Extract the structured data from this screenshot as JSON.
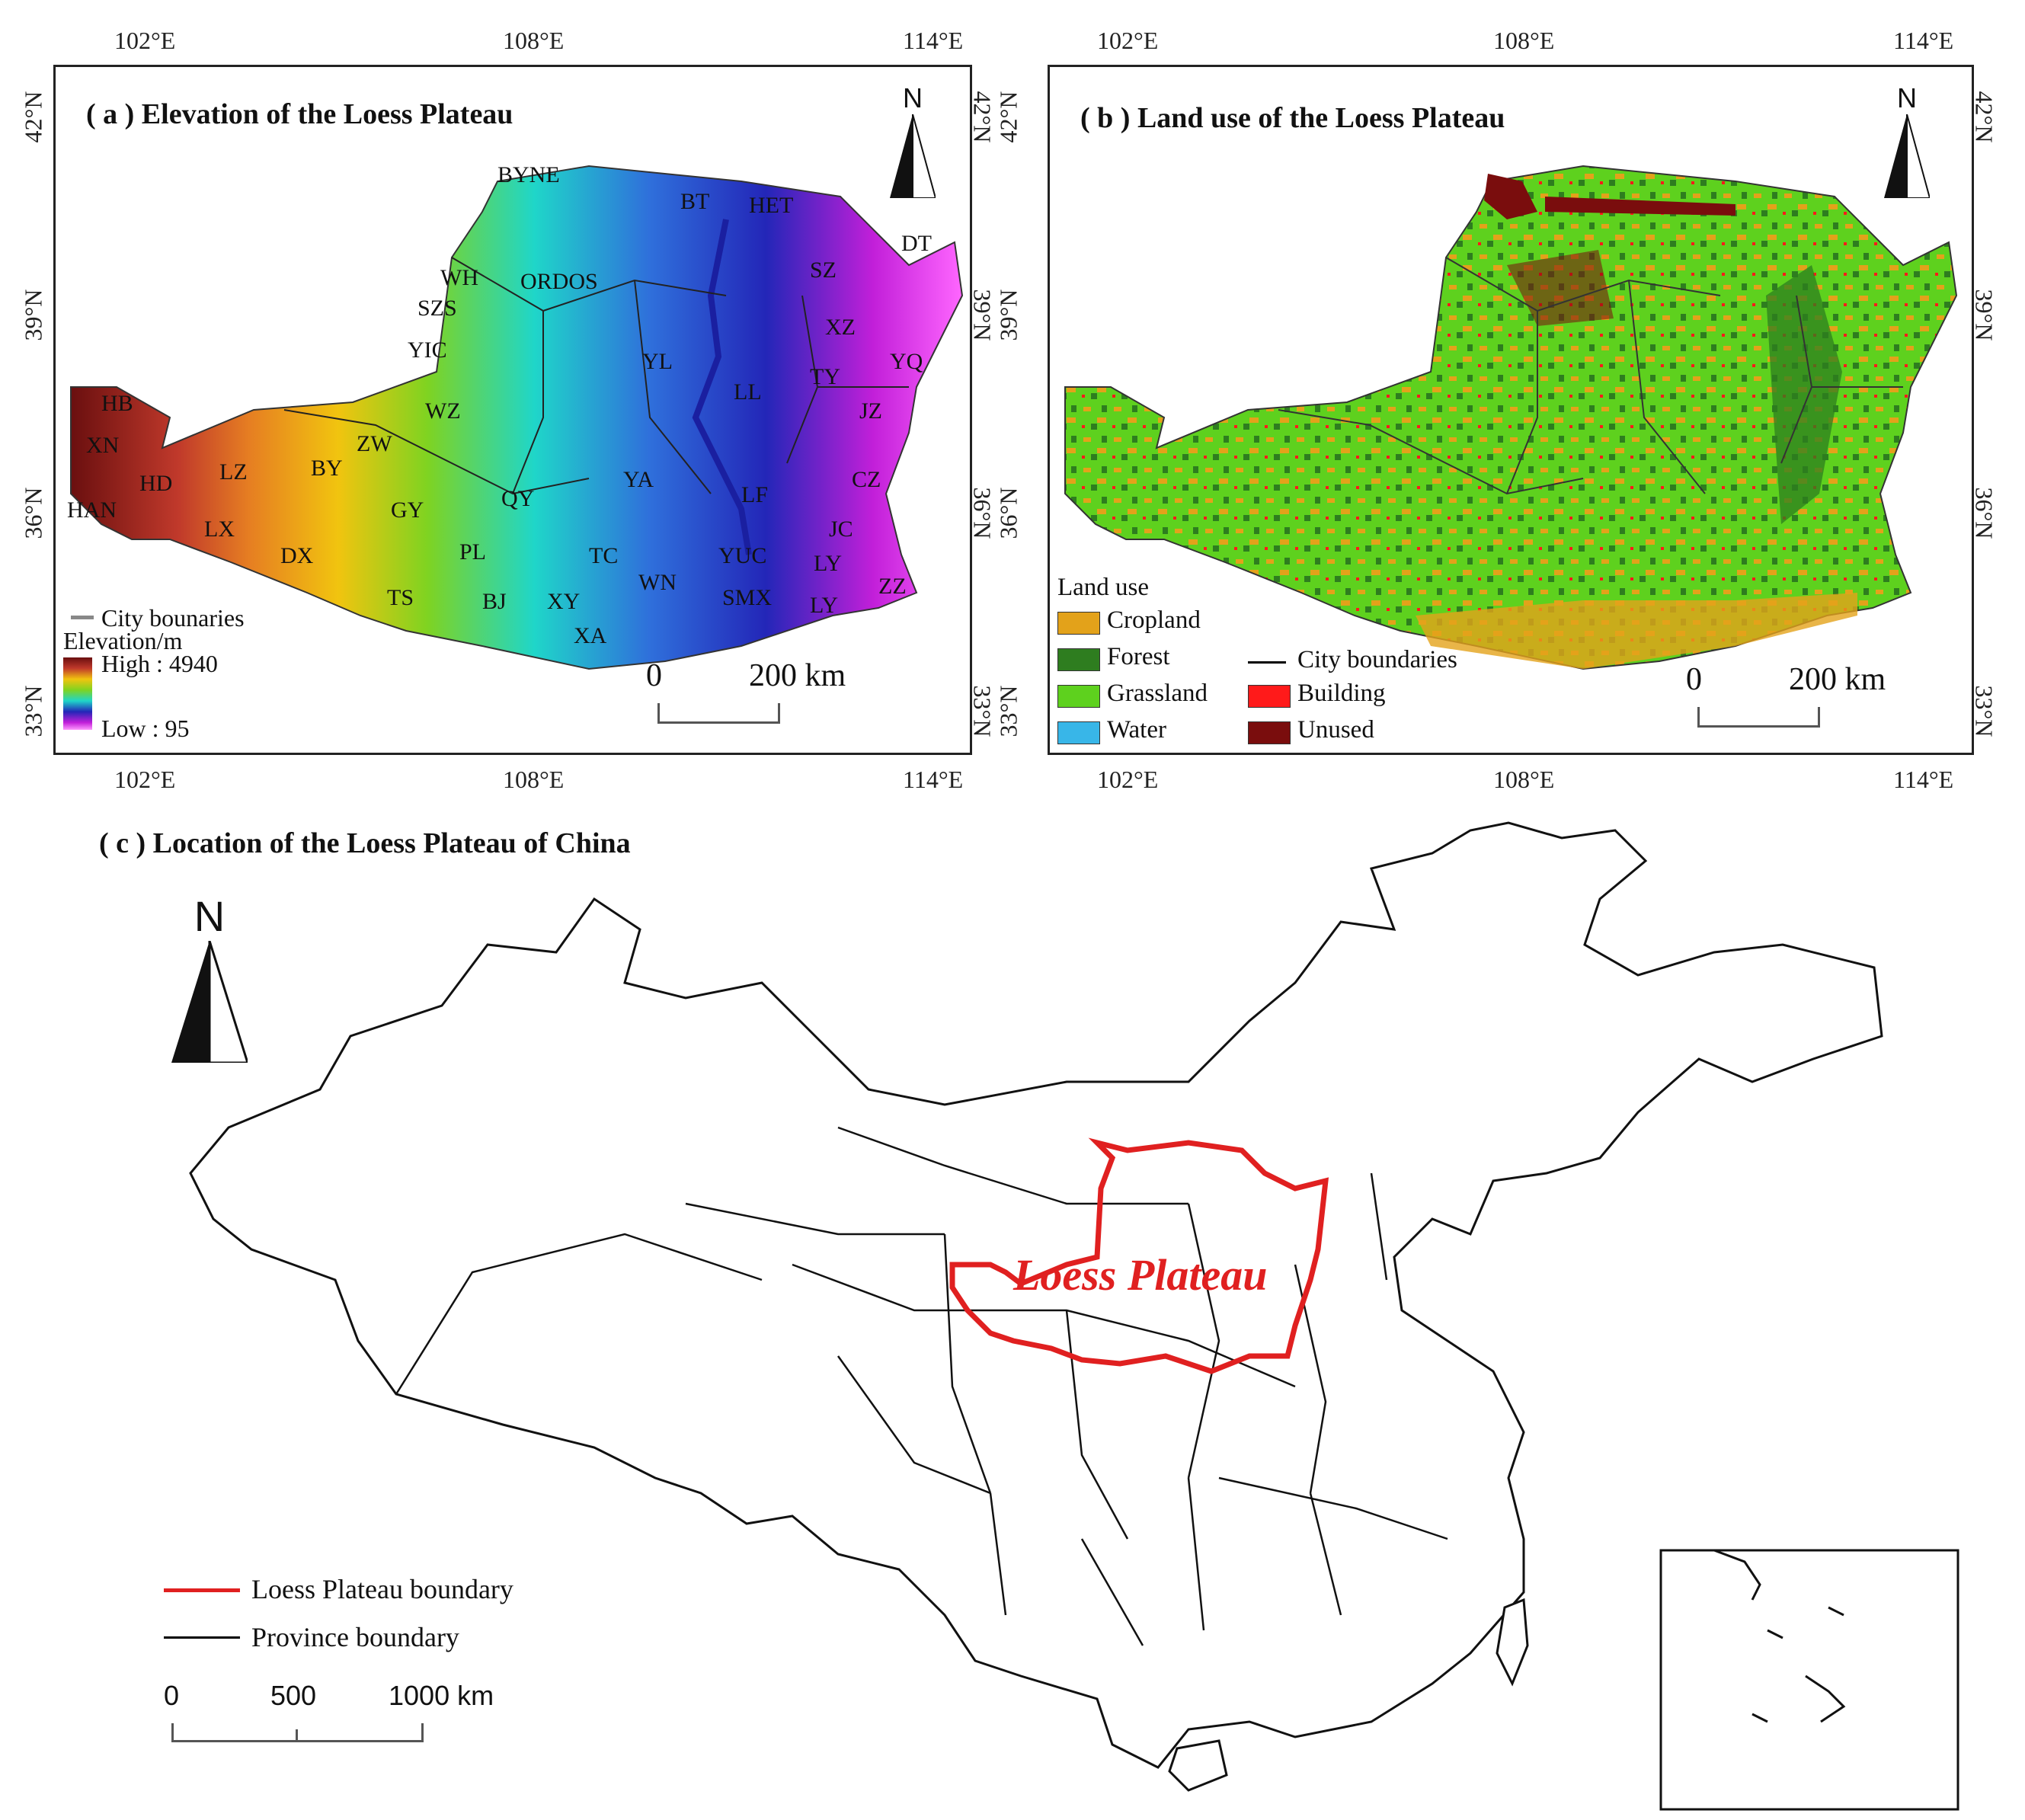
{
  "axes_top_lon": [
    "102°E",
    "108°E",
    "114°E"
  ],
  "axes_bottom_lon": [
    "102°E",
    "108°E",
    "114°E"
  ],
  "axes_lat": [
    "42°N",
    "39°N",
    "36°N",
    "33°N"
  ],
  "panel_a": {
    "title": "( a )  Elevation of the Loess Plateau",
    "north": "N",
    "city_labels": [
      "BYNE",
      "BT",
      "HET",
      "DT",
      "SZ",
      "WH",
      "ORDOS",
      "SZS",
      "XZ",
      "YIC",
      "YQ",
      "YL",
      "LL",
      "TY",
      "HB",
      "JZ",
      "WZ",
      "XN",
      "ZW",
      "LZ",
      "HD",
      "BY",
      "QY",
      "YA",
      "CZ",
      "HAN",
      "LF",
      "GY",
      "LX",
      "JC",
      "DX",
      "PL",
      "TC",
      "YUC",
      "LY",
      "TS",
      "BJ",
      "XY",
      "WN",
      "SMX",
      "ZZ",
      "XA",
      "LY"
    ],
    "legend": {
      "city_line": "City bounaries",
      "elev_title": "Elevation/m",
      "high": "High : 4940",
      "low": "Low : 95",
      "gradient_colors": [
        "#6a0f0f",
        "#c0392b",
        "#e67e22",
        "#f1c40f",
        "#7fd321",
        "#1fd6c9",
        "#2f6fdb",
        "#2326b8",
        "#c21fd9",
        "#ff66ff"
      ]
    },
    "scale": {
      "zero": "0",
      "dist": "200 km"
    }
  },
  "panel_b": {
    "title": "( b )  Land use of the Loess Plateau",
    "north": "N",
    "legend": {
      "title": "Land use",
      "items": [
        {
          "label": "Cropland",
          "color": "#e3a21a"
        },
        {
          "label": "Forest",
          "color": "#2e7d1f"
        },
        {
          "label": "Grassland",
          "color": "#5ed11e"
        },
        {
          "label": "Water",
          "color": "#38b6e8"
        }
      ],
      "items2": [
        {
          "label": "City boundaries",
          "color": "#000000"
        },
        {
          "label": "Building",
          "color": "#ff1a1a"
        },
        {
          "label": "Unused",
          "color": "#7a0d0d"
        }
      ]
    },
    "scale": {
      "zero": "0",
      "dist": "200 km"
    }
  },
  "panel_c": {
    "title": "( c )  Location of the Loess Plateau of China",
    "north": "N",
    "region_label": "Loess Plateau",
    "legend": [
      {
        "label": "Loess Plateau boundary",
        "color": "#e02020"
      },
      {
        "label": "Province boundary",
        "color": "#000000"
      }
    ],
    "scale": {
      "ticks": [
        "0",
        "500",
        "1000 km"
      ]
    }
  }
}
